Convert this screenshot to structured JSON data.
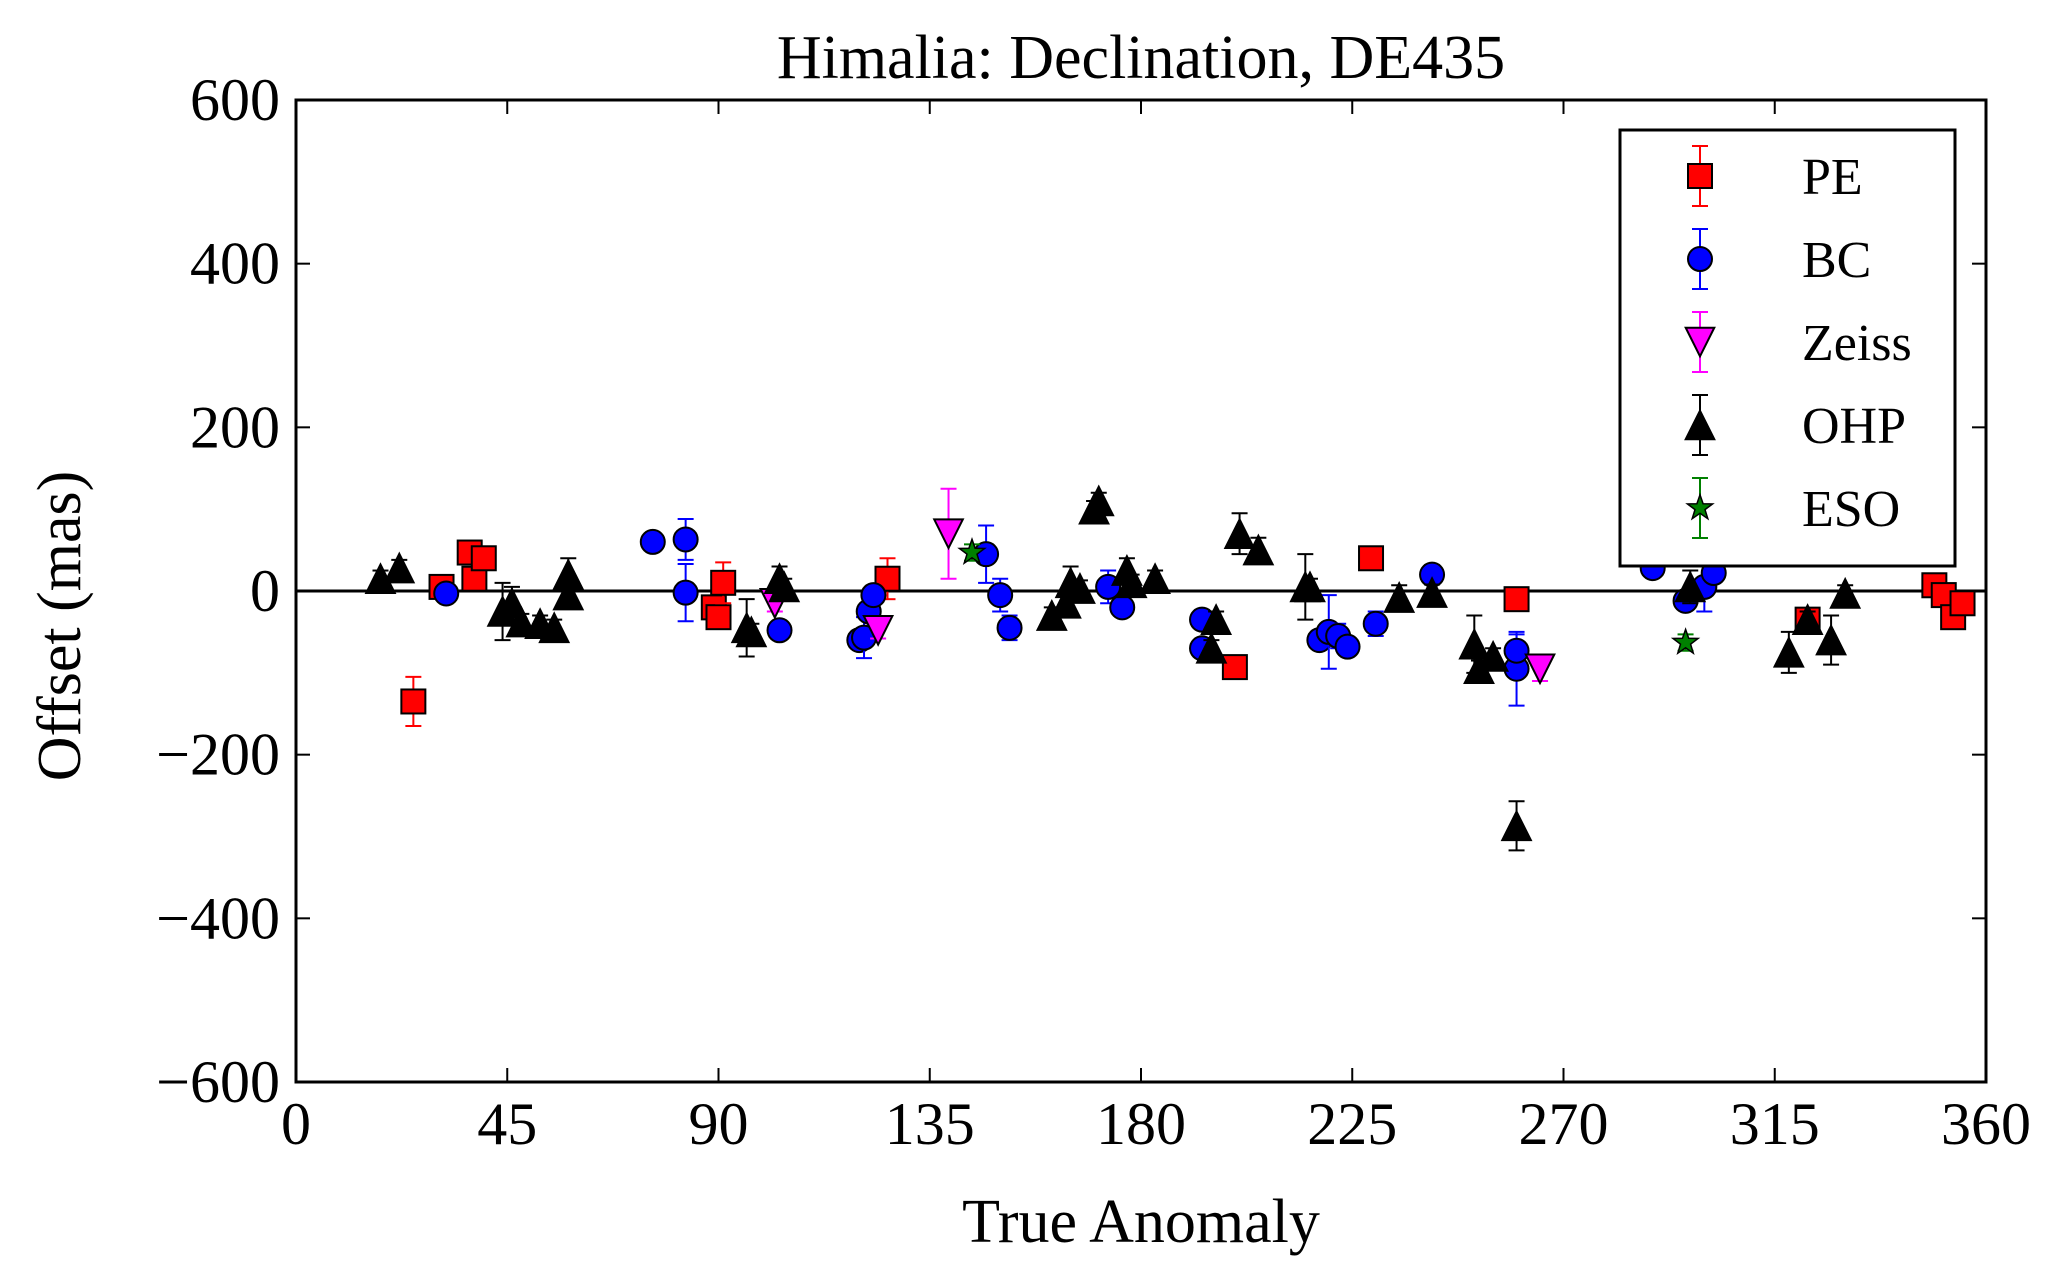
{
  "chart_data": {
    "type": "scatter",
    "title": "Himalia: Declination, DE435",
    "xlabel": "True Anomaly",
    "ylabel": "Offset (mas)",
    "xlim": [
      0,
      360
    ],
    "ylim": [
      -600,
      600
    ],
    "xticks": [
      0,
      45,
      90,
      135,
      180,
      225,
      270,
      315,
      360
    ],
    "yticks": [
      -600,
      -400,
      -200,
      0,
      200,
      400,
      600
    ],
    "ytick_labels": [
      "−600",
      "−400",
      "−200",
      "0",
      "200",
      "400",
      "600"
    ],
    "zero_line": true,
    "grid": false,
    "legend_position": "top-right",
    "series": [
      {
        "name": "PE",
        "marker": "square",
        "color": "#ff0000",
        "points": [
          [
            25,
            -135,
            30
          ],
          [
            31,
            5,
            10
          ],
          [
            37,
            47,
            10
          ],
          [
            38,
            15,
            10
          ],
          [
            40,
            40,
            10
          ],
          [
            89,
            -20,
            10
          ],
          [
            90,
            -32,
            10
          ],
          [
            91,
            10,
            25
          ],
          [
            126,
            15,
            25
          ],
          [
            200,
            -93,
            10
          ],
          [
            229,
            40,
            10
          ],
          [
            260,
            -10,
            10
          ],
          [
            322,
            -35,
            10
          ],
          [
            349,
            7,
            10
          ],
          [
            351,
            -5,
            10
          ],
          [
            353,
            -32,
            10
          ],
          [
            355,
            -15,
            10
          ]
        ]
      },
      {
        "name": "BC",
        "marker": "circle",
        "color": "#0000ff",
        "points": [
          [
            32,
            -3,
            8
          ],
          [
            76,
            60,
            8
          ],
          [
            83,
            63,
            25
          ],
          [
            83,
            -2,
            35
          ],
          [
            103,
            -48,
            10
          ],
          [
            120,
            -60,
            10
          ],
          [
            121,
            -57,
            25
          ],
          [
            122,
            -25,
            10
          ],
          [
            123,
            -5,
            10
          ],
          [
            147,
            45,
            35
          ],
          [
            150,
            -5,
            20
          ],
          [
            152,
            -45,
            15
          ],
          [
            173,
            5,
            20
          ],
          [
            176,
            -20,
            10
          ],
          [
            193,
            -35,
            10
          ],
          [
            193,
            -70,
            10
          ],
          [
            218,
            -60,
            10
          ],
          [
            220,
            -50,
            45
          ],
          [
            222,
            -55,
            15
          ],
          [
            224,
            -68,
            10
          ],
          [
            230,
            -40,
            15
          ],
          [
            242,
            20,
            10
          ],
          [
            260,
            -95,
            45
          ],
          [
            260,
            -73,
            20
          ],
          [
            289,
            28,
            10
          ],
          [
            296,
            -12,
            10
          ],
          [
            300,
            5,
            30
          ],
          [
            302,
            22,
            10
          ]
        ]
      },
      {
        "name": "Zeiss",
        "marker": "triangle-down",
        "color": "#ff00ff",
        "points": [
          [
            102,
            -15,
            10
          ],
          [
            124,
            -48,
            10
          ],
          [
            139,
            70,
            55
          ],
          [
            265,
            -95,
            15
          ]
        ]
      },
      {
        "name": "OHP",
        "marker": "triangle-up",
        "color": "#000000",
        "points": [
          [
            18,
            15,
            10
          ],
          [
            22,
            28,
            10
          ],
          [
            44,
            -25,
            35
          ],
          [
            46,
            -15,
            20
          ],
          [
            48,
            -38,
            10
          ],
          [
            52,
            -40,
            10
          ],
          [
            55,
            -45,
            10
          ],
          [
            58,
            -5,
            10
          ],
          [
            58,
            20,
            20
          ],
          [
            96,
            -45,
            35
          ],
          [
            97,
            -50,
            10
          ],
          [
            103,
            15,
            15
          ],
          [
            104,
            5,
            10
          ],
          [
            161,
            -30,
            10
          ],
          [
            164,
            -15,
            10
          ],
          [
            165,
            10,
            20
          ],
          [
            167,
            3,
            10
          ],
          [
            170,
            100,
            10
          ],
          [
            171,
            110,
            10
          ],
          [
            177,
            25,
            15
          ],
          [
            178,
            10,
            10
          ],
          [
            183,
            15,
            10
          ],
          [
            195,
            -70,
            10
          ],
          [
            196,
            -35,
            10
          ],
          [
            201,
            70,
            25
          ],
          [
            205,
            50,
            15
          ],
          [
            215,
            5,
            40
          ],
          [
            216,
            5,
            10
          ],
          [
            235,
            -8,
            15
          ],
          [
            242,
            -2,
            10
          ],
          [
            251,
            -65,
            35
          ],
          [
            252,
            -95,
            10
          ],
          [
            255,
            -80,
            10
          ],
          [
            260,
            -287,
            30
          ],
          [
            297,
            5,
            20
          ],
          [
            318,
            -75,
            25
          ],
          [
            322,
            -35,
            10
          ],
          [
            327,
            -60,
            30
          ],
          [
            330,
            -3,
            10
          ]
        ]
      },
      {
        "name": "ESO",
        "marker": "star",
        "color": "#008000",
        "points": [
          [
            144,
            47,
            10
          ],
          [
            296,
            -63,
            10
          ]
        ]
      }
    ]
  }
}
